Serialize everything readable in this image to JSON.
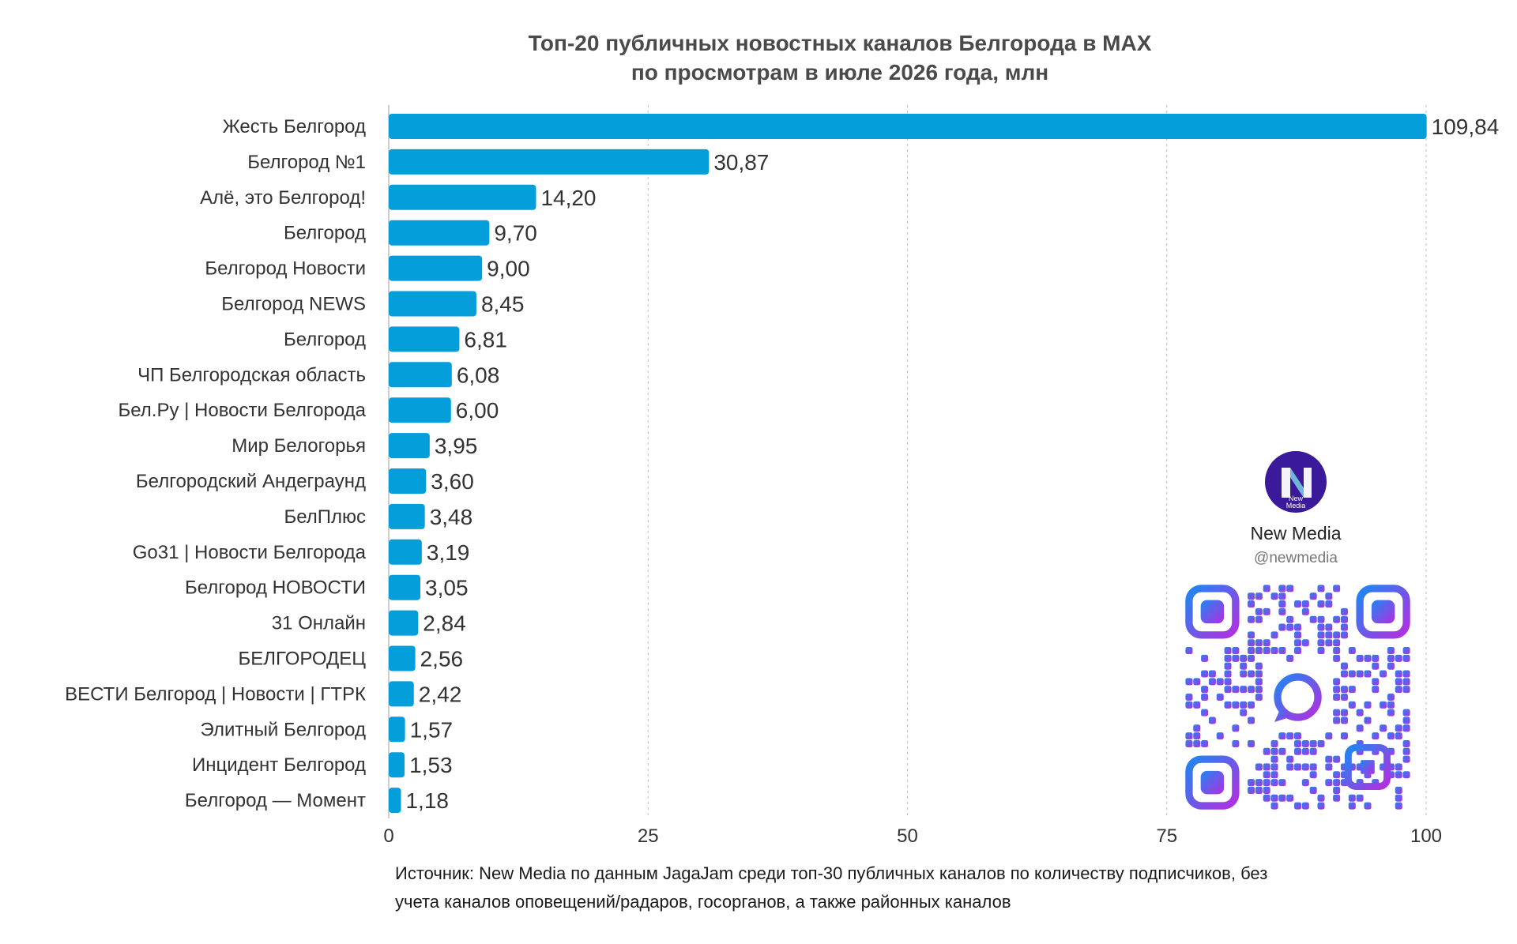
{
  "chart_data": {
    "type": "bar",
    "orientation": "horizontal",
    "title": [
      "Топ-20 публичных новостных каналов Белгорода в MAX",
      "по просмотрам в июле 2026 года, млн"
    ],
    "categories": [
      "Жесть Белгород",
      "Белгород №1",
      "Алё, это Белгород!",
      "Белгород",
      "Белгород Новости",
      "Белгород NEWS",
      "Белгород",
      "ЧП Белгородская область",
      "Бел.Ру | Новости Белгорода",
      "Мир Белогорья",
      "Белгородский Андеграунд",
      "БелПлюс",
      "Go31 | Новости Белгорода",
      "Белгород НОВОСТИ",
      "31 Онлайн",
      "БЕЛГОРОДЕЦ",
      "ВЕСТИ Белгород | Новости | ГТРК",
      "Элитный Белгород",
      "Инцидент Белгород",
      "Белгород — Момент"
    ],
    "values": [
      109.84,
      30.87,
      14.2,
      9.7,
      9.0,
      8.45,
      6.81,
      6.08,
      6.0,
      3.95,
      3.6,
      3.48,
      3.19,
      3.05,
      2.84,
      2.56,
      2.42,
      1.57,
      1.53,
      1.18
    ],
    "value_labels": [
      "109,84",
      "30,87",
      "14,20",
      "9,70",
      "9,00",
      "8,45",
      "6,81",
      "6,08",
      "6,00",
      "3,95",
      "3,60",
      "3,48",
      "3,19",
      "3,05",
      "2,84",
      "2,56",
      "2,42",
      "1,57",
      "1,53",
      "1,18"
    ],
    "xticks": [
      0,
      25,
      50,
      75,
      100
    ],
    "xlim": [
      0,
      100
    ],
    "xlabel": "",
    "ylabel": "",
    "grid": true,
    "legend": "none",
    "bar_color": "#049fda"
  },
  "source": "Источник: New Media по данным JagaJam среди топ-30 публичных каналов по количеству подписчиков, без учета каналов оповещений/радаров, госорганов, а также районных каналов",
  "brand": {
    "name": "New Media",
    "handle": "@newmedia",
    "logo_letter": "N",
    "logo_caption": [
      "New",
      "Media"
    ],
    "logo_color": "#3a1a9a",
    "qr_color_start": "#1f86f2",
    "qr_color_end": "#b42ee0",
    "qr_icon": "max-messenger-icon"
  }
}
